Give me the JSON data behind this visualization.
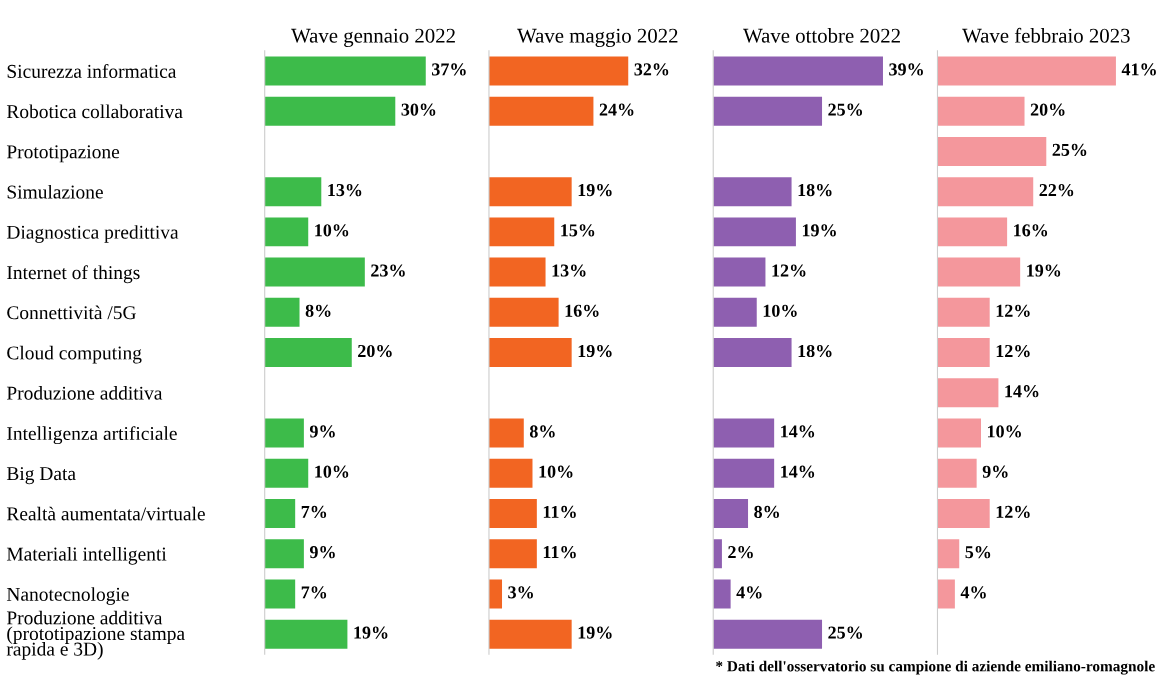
{
  "chart_data": [
    {
      "type": "bar",
      "orientation": "horizontal",
      "title": "Wave gennaio 2022",
      "categories": [
        "Sicurezza informatica",
        "Robotica collaborativa",
        "Prototipazione",
        "Simulazione",
        "Diagnostica predittiva",
        "Internet of things",
        "Connettività /5G",
        "Cloud computing",
        "Produzione additiva",
        "Intelligenza artificiale",
        "Big Data",
        "Realtà aumentata/virtuale",
        "Materiali intelligenti",
        "Nanotecnologie",
        "Produzione additiva\n(prototipazione stampa\nrapida e 3D)"
      ],
      "values": [
        37,
        30,
        null,
        13,
        10,
        23,
        8,
        20,
        null,
        9,
        10,
        7,
        9,
        7,
        19
      ],
      "value_labels": [
        "37%",
        "30%",
        null,
        "13%",
        "10%",
        "23%",
        "8%",
        "20%",
        null,
        "9%",
        "10%",
        "7%",
        "9%",
        "7%",
        "19%"
      ],
      "color": "#3dbb4a",
      "tick_labels": "y",
      "grid": false
    },
    {
      "type": "bar",
      "orientation": "horizontal",
      "title": "Wave maggio 2022",
      "values": [
        32,
        24,
        null,
        19,
        15,
        13,
        16,
        19,
        null,
        8,
        10,
        11,
        11,
        3,
        19
      ],
      "value_labels": [
        "32%",
        "24%",
        null,
        "19%",
        "15%",
        "13%",
        "16%",
        "19%",
        null,
        "8%",
        "10%",
        "11%",
        "11%",
        "3%",
        "19%"
      ],
      "color": "#f26522",
      "tick_labels": false,
      "grid": false
    },
    {
      "type": "bar",
      "orientation": "horizontal",
      "title": "Wave ottobre 2022",
      "values": [
        39,
        25,
        null,
        18,
        19,
        12,
        10,
        18,
        null,
        14,
        14,
        8,
        2,
        4,
        25
      ],
      "value_labels": [
        "39%",
        "25%",
        null,
        "18%",
        "19%",
        "12%",
        "10%",
        "18%",
        null,
        "14%",
        "14%",
        "8%",
        "2%",
        "4%",
        "25%"
      ],
      "color": "#8e5fb0",
      "tick_labels": false,
      "grid": false
    },
    {
      "type": "bar",
      "orientation": "horizontal",
      "title": "Wave febbraio 2023",
      "values": [
        41,
        20,
        25,
        22,
        16,
        19,
        12,
        12,
        14,
        10,
        9,
        12,
        5,
        4,
        null
      ],
      "value_labels": [
        "41%",
        "20%",
        "25%",
        "22%",
        "16%",
        "19%",
        "12%",
        "12%",
        "14%",
        "10%",
        "9%",
        "12%",
        "5%",
        "4%",
        null
      ],
      "color": "#f4979c",
      "tick_labels": false,
      "grid": false,
      "annotations": [
        "* Dati dell'osservatorio su campione di aziende emiliano-romagnole"
      ]
    }
  ]
}
